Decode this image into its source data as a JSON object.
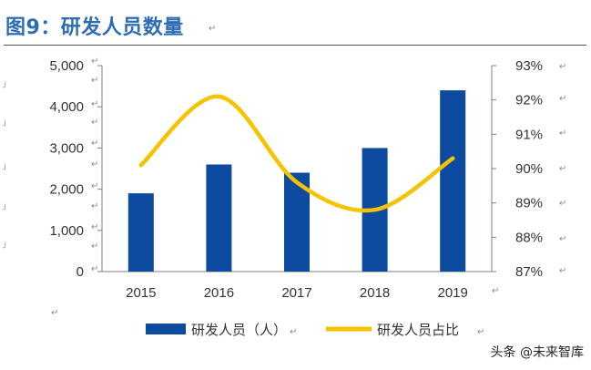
{
  "header": {
    "title": "图9：研发人员数量"
  },
  "chart_data": {
    "type": "bar",
    "categories": [
      "2015",
      "2016",
      "2017",
      "2018",
      "2019"
    ],
    "series": [
      {
        "name": "研发人员（人）",
        "type": "bar",
        "axis": "left",
        "color": "#0d4ba0",
        "values": [
          1900,
          2600,
          2400,
          3000,
          4400
        ]
      },
      {
        "name": "研发人员占比",
        "type": "line",
        "axis": "right",
        "color": "#f5c300",
        "values": [
          90.1,
          92.1,
          89.6,
          88.8,
          90.3
        ]
      }
    ],
    "y_left": {
      "min": 0,
      "max": 5000,
      "ticks": [
        "0",
        "1,000",
        "2,000",
        "3,000",
        "4,000",
        "5,000"
      ]
    },
    "y_right": {
      "min": 87,
      "max": 93,
      "ticks": [
        "87%",
        "88%",
        "89%",
        "90%",
        "91%",
        "92%",
        "93%"
      ]
    },
    "grid": false,
    "legend": "bottom",
    "line_smooth": true
  },
  "watermark": "头条 @未来智库"
}
